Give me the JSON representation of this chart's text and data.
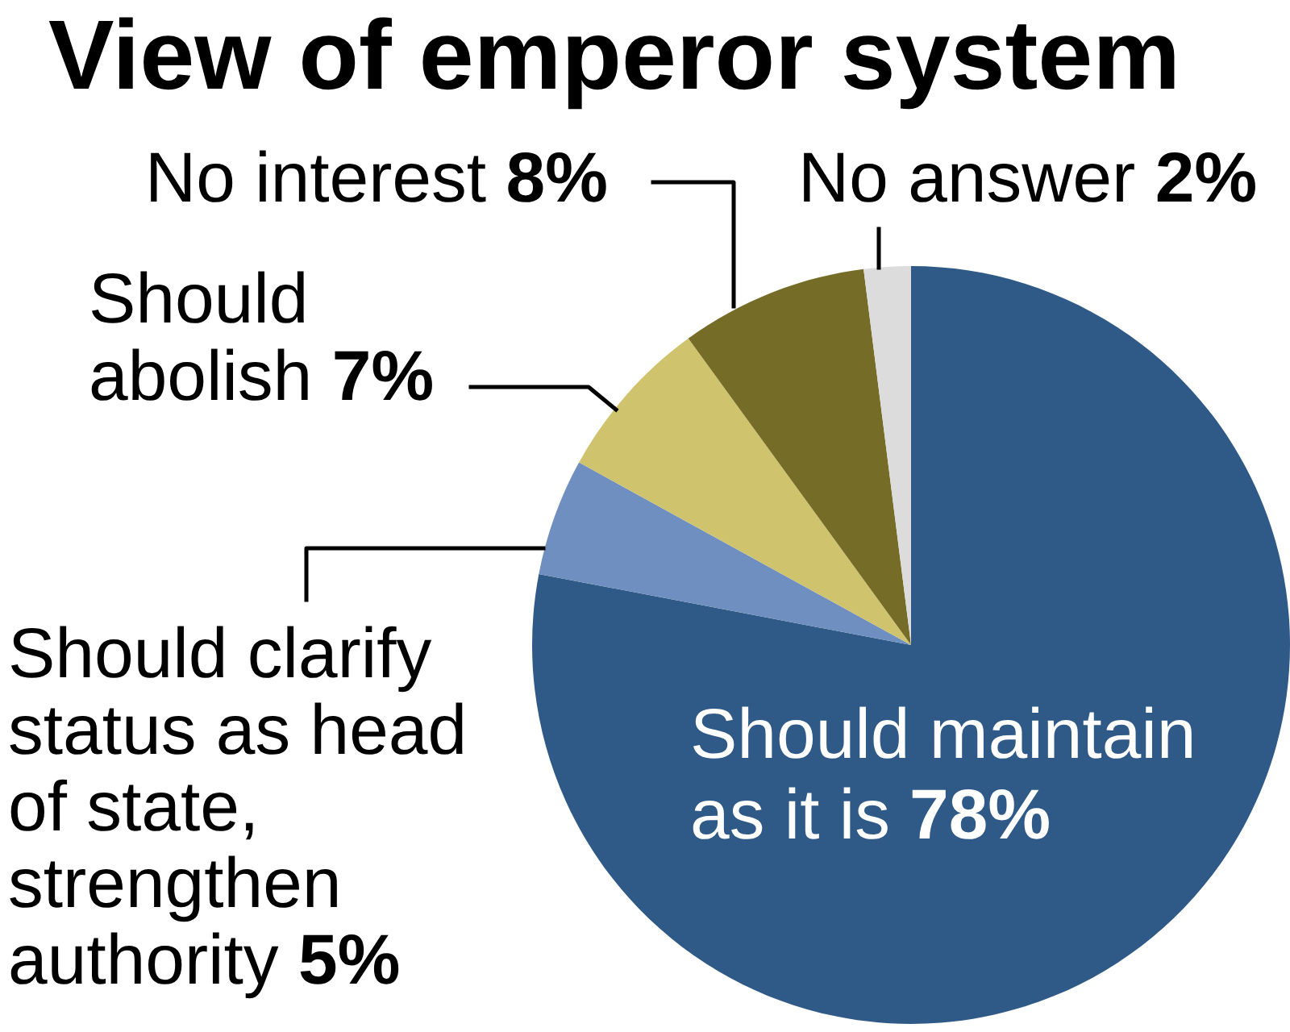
{
  "chart_data": {
    "type": "pie",
    "title": "View of emperor system",
    "categories": [
      "Should maintain\nas it is",
      "Should clarify\nstatus as head\nof state,\nstrengthen\nauthority",
      "Should\nabolish",
      "No interest",
      "No answer"
    ],
    "values": [
      78,
      5,
      7,
      8,
      2
    ],
    "colors": [
      "#2f5a87",
      "#6e8fbf",
      "#cfc36e",
      "#756d27",
      "#dcdcdc"
    ],
    "value_labels": [
      "78%",
      "5%",
      "7%",
      "8%",
      "2%"
    ]
  }
}
